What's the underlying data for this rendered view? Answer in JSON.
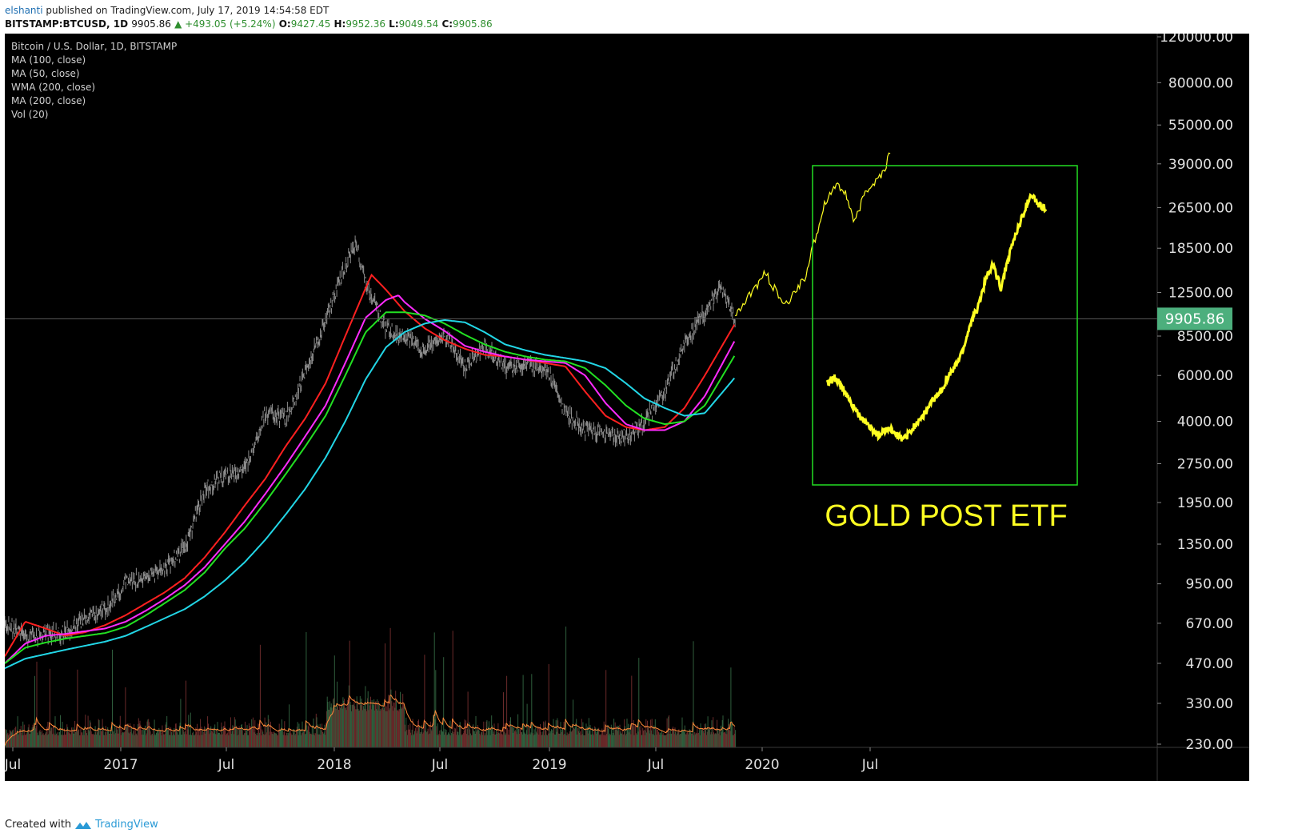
{
  "header": {
    "author": "elshanti",
    "published": "published on TradingView.com, July 17, 2019 14:54:58 EDT",
    "symbol": "BITSTAMP:BTCUSD, 1D",
    "last": "9905.86",
    "change": "▲ +493.05 (+5.24%)",
    "o_label": "O:",
    "o_value": "9427.45",
    "h_label": "H:",
    "h_value": "9952.36",
    "l_label": "L:",
    "l_value": "9049.54",
    "c_label": "C:",
    "c_value": "9905.86"
  },
  "legend": [
    "Bitcoin / U.S. Dollar, 1D, BITSTAMP",
    "MA (100, close)",
    "MA (50, close)",
    "WMA (200, close)",
    "MA (200, close)",
    "Vol (20)"
  ],
  "annotation": "GOLD POST ETF",
  "price_label": "9905.86",
  "footer": {
    "created": "Created with",
    "brand": "TradingView"
  },
  "colors": {
    "background": "#000000",
    "candles": "#8c8c8c",
    "ma100": "#ff2020",
    "ma50": "#ff2bff",
    "wma200": "#22e022",
    "ma200": "#22d6e6",
    "projection": "#ffff22",
    "box": "#22dd22",
    "price_tag": "#4caf7d"
  },
  "chart_data": {
    "type": "line",
    "y_scale": "log",
    "ylim": [
      230,
      120000
    ],
    "y_ticks": [
      "120000.00",
      "80000.00",
      "55000.00",
      "39000.00",
      "26500.00",
      "18500.00",
      "12500.00",
      "8500.00",
      "6000.00",
      "4000.00",
      "2750.00",
      "1950.00",
      "1350.00",
      "950.00",
      "670.00",
      "470.00",
      "330.00",
      "230.00"
    ],
    "x_ticks": [
      "Jul",
      "2017",
      "Jul",
      "2018",
      "Jul",
      "2019",
      "Jul",
      "2020",
      "Jul"
    ],
    "x_range": [
      "2016-07-01",
      "2021-01-01"
    ],
    "series": [
      {
        "key": "price",
        "color": "#8c8c8c",
        "x": [
          "2016-07-01",
          "2016-08-01",
          "2016-09-01",
          "2016-10-01",
          "2016-11-01",
          "2016-12-01",
          "2017-01-01",
          "2017-02-01",
          "2017-03-01",
          "2017-04-01",
          "2017-05-01",
          "2017-06-01",
          "2017-07-01",
          "2017-08-01",
          "2017-09-01",
          "2017-10-01",
          "2017-11-01",
          "2017-12-01",
          "2017-12-17",
          "2018-01-01",
          "2018-02-01",
          "2018-03-01",
          "2018-04-01",
          "2018-05-01",
          "2018-06-01",
          "2018-07-01",
          "2018-08-01",
          "2018-09-01",
          "2018-10-01",
          "2018-11-01",
          "2018-12-01",
          "2019-01-01",
          "2019-02-01",
          "2019-03-01",
          "2019-04-01",
          "2019-05-01",
          "2019-06-01",
          "2019-06-26",
          "2019-07-17"
        ],
        "y": [
          680,
          600,
          610,
          620,
          700,
          760,
          960,
          1000,
          1100,
          1300,
          2200,
          2500,
          2600,
          4300,
          4100,
          6100,
          9800,
          16000,
          19500,
          13500,
          9000,
          8500,
          7500,
          8500,
          6500,
          7700,
          6500,
          6500,
          6500,
          4300,
          3700,
          3600,
          3500,
          4000,
          5200,
          8000,
          10500,
          13000,
          9905.86
        ]
      },
      {
        "key": "ma100",
        "color": "#ff2020",
        "x": [
          "2016-07-01",
          "2016-08-01",
          "2016-09-01",
          "2016-10-01",
          "2016-11-01",
          "2016-12-01",
          "2017-01-01",
          "2017-02-01",
          "2017-03-01",
          "2017-04-01",
          "2017-05-01",
          "2017-06-01",
          "2017-07-01",
          "2017-08-01",
          "2017-09-01",
          "2017-10-01",
          "2017-11-01",
          "2017-12-01",
          "2018-01-01",
          "2018-01-10",
          "2018-02-01",
          "2018-03-01",
          "2018-04-01",
          "2018-05-01",
          "2018-06-01",
          "2018-07-01",
          "2018-08-01",
          "2018-09-01",
          "2018-10-01",
          "2018-11-01",
          "2018-12-01",
          "2019-01-01",
          "2019-02-01",
          "2019-03-01",
          "2019-04-01",
          "2019-05-01",
          "2019-06-01",
          "2019-07-17"
        ],
        "y": [
          500,
          680,
          640,
          600,
          620,
          660,
          720,
          800,
          880,
          1000,
          1200,
          1500,
          1900,
          2400,
          3200,
          4100,
          5600,
          8500,
          13000,
          14600,
          12800,
          10600,
          9100,
          8200,
          7600,
          7200,
          7100,
          6900,
          6700,
          6500,
          5200,
          4200,
          3800,
          3700,
          3800,
          4500,
          6000,
          9500
        ]
      },
      {
        "key": "ma50",
        "color": "#ff2bff",
        "x": [
          "2016-07-01",
          "2016-08-01",
          "2016-09-01",
          "2016-10-01",
          "2016-11-01",
          "2016-12-01",
          "2017-01-01",
          "2017-02-01",
          "2017-03-01",
          "2017-04-01",
          "2017-05-01",
          "2017-06-01",
          "2017-07-01",
          "2017-08-01",
          "2017-09-01",
          "2017-10-01",
          "2017-11-01",
          "2017-12-01",
          "2018-01-01",
          "2018-02-01",
          "2018-02-20",
          "2018-03-01",
          "2018-04-01",
          "2018-05-01",
          "2018-06-01",
          "2018-07-01",
          "2018-08-01",
          "2018-09-01",
          "2018-10-01",
          "2018-11-01",
          "2018-12-01",
          "2019-01-01",
          "2019-02-01",
          "2019-03-01",
          "2019-04-01",
          "2019-05-01",
          "2019-06-01",
          "2019-07-17"
        ],
        "y": [
          470,
          560,
          600,
          610,
          625,
          640,
          680,
          750,
          830,
          940,
          1100,
          1350,
          1650,
          2100,
          2700,
          3500,
          4600,
          6700,
          10000,
          11700,
          12200,
          11500,
          9900,
          8900,
          7800,
          7400,
          7100,
          6900,
          6800,
          6700,
          6000,
          4700,
          3900,
          3700,
          3700,
          4000,
          5000,
          8200
        ]
      },
      {
        "key": "wma200",
        "color": "#22e022",
        "x": [
          "2016-07-01",
          "2016-08-01",
          "2016-09-01",
          "2016-10-01",
          "2016-11-01",
          "2016-12-01",
          "2017-01-01",
          "2017-02-01",
          "2017-03-01",
          "2017-04-01",
          "2017-05-01",
          "2017-06-01",
          "2017-07-01",
          "2017-08-01",
          "2017-09-01",
          "2017-10-01",
          "2017-11-01",
          "2017-12-01",
          "2018-01-01",
          "2018-02-01",
          "2018-03-01",
          "2018-04-01",
          "2018-05-01",
          "2018-06-01",
          "2018-07-01",
          "2018-08-01",
          "2018-09-01",
          "2018-10-01",
          "2018-11-01",
          "2018-12-01",
          "2019-01-01",
          "2019-02-01",
          "2019-03-01",
          "2019-04-01",
          "2019-05-01",
          "2019-06-01",
          "2019-07-17"
        ],
        "y": [
          470,
          540,
          565,
          585,
          600,
          615,
          650,
          720,
          800,
          900,
          1050,
          1300,
          1550,
          1950,
          2500,
          3200,
          4200,
          6000,
          8800,
          10500,
          10500,
          10200,
          9500,
          8600,
          7900,
          7400,
          7100,
          6900,
          6800,
          6400,
          5500,
          4600,
          4100,
          3900,
          4000,
          4600,
          7200
        ]
      },
      {
        "key": "ma200",
        "color": "#22d6e6",
        "x": [
          "2016-07-01",
          "2016-08-01",
          "2016-09-01",
          "2016-10-01",
          "2016-11-01",
          "2016-12-01",
          "2017-01-01",
          "2017-02-01",
          "2017-03-01",
          "2017-04-01",
          "2017-05-01",
          "2017-06-01",
          "2017-07-01",
          "2017-08-01",
          "2017-09-01",
          "2017-10-01",
          "2017-11-01",
          "2017-12-01",
          "2018-01-01",
          "2018-02-01",
          "2018-03-01",
          "2018-04-01",
          "2018-05-01",
          "2018-06-01",
          "2018-07-01",
          "2018-08-01",
          "2018-09-01",
          "2018-10-01",
          "2018-11-01",
          "2018-12-01",
          "2019-01-01",
          "2019-02-01",
          "2019-03-01",
          "2019-04-01",
          "2019-05-01",
          "2019-06-01",
          "2019-07-17"
        ],
        "y": [
          450,
          490,
          510,
          530,
          550,
          570,
          600,
          650,
          700,
          760,
          850,
          980,
          1150,
          1400,
          1750,
          2200,
          2900,
          4000,
          5800,
          7700,
          8800,
          9500,
          9800,
          9600,
          8800,
          7900,
          7500,
          7200,
          7000,
          6800,
          6400,
          5600,
          4900,
          4500,
          4200,
          4300,
          5900
        ]
      },
      {
        "key": "projection",
        "color": "#ffff22",
        "x": [
          "2019-07-17",
          "2019-08-01",
          "2019-09-01",
          "2019-10-01",
          "2019-11-01",
          "2019-12-01",
          "2019-12-20",
          "2020-01-01",
          "2020-01-15",
          "2020-02-01",
          "2020-02-15",
          "2020-03-01",
          "2020-03-10"
        ],
        "y": [
          9905.86,
          11500,
          14800,
          11000,
          14500,
          28000,
          33000,
          30000,
          23000,
          31000,
          33000,
          37000,
          45000
        ]
      }
    ],
    "volume": {
      "color": "#3a6e4a",
      "avg_color": "#ff8a3a"
    },
    "inset": {
      "title": "GOLD POST ETF",
      "color": "#ffff22",
      "points_shape": [
        5600,
        5900,
        5400,
        4800,
        4300,
        4000,
        3700,
        3500,
        3800,
        3600,
        3400,
        3600,
        4000,
        4300,
        4800,
        5200,
        5900,
        6500,
        7500,
        9500,
        11000,
        14000,
        16000,
        13000,
        17000,
        21000,
        25000,
        30000,
        27000,
        26000
      ]
    }
  }
}
